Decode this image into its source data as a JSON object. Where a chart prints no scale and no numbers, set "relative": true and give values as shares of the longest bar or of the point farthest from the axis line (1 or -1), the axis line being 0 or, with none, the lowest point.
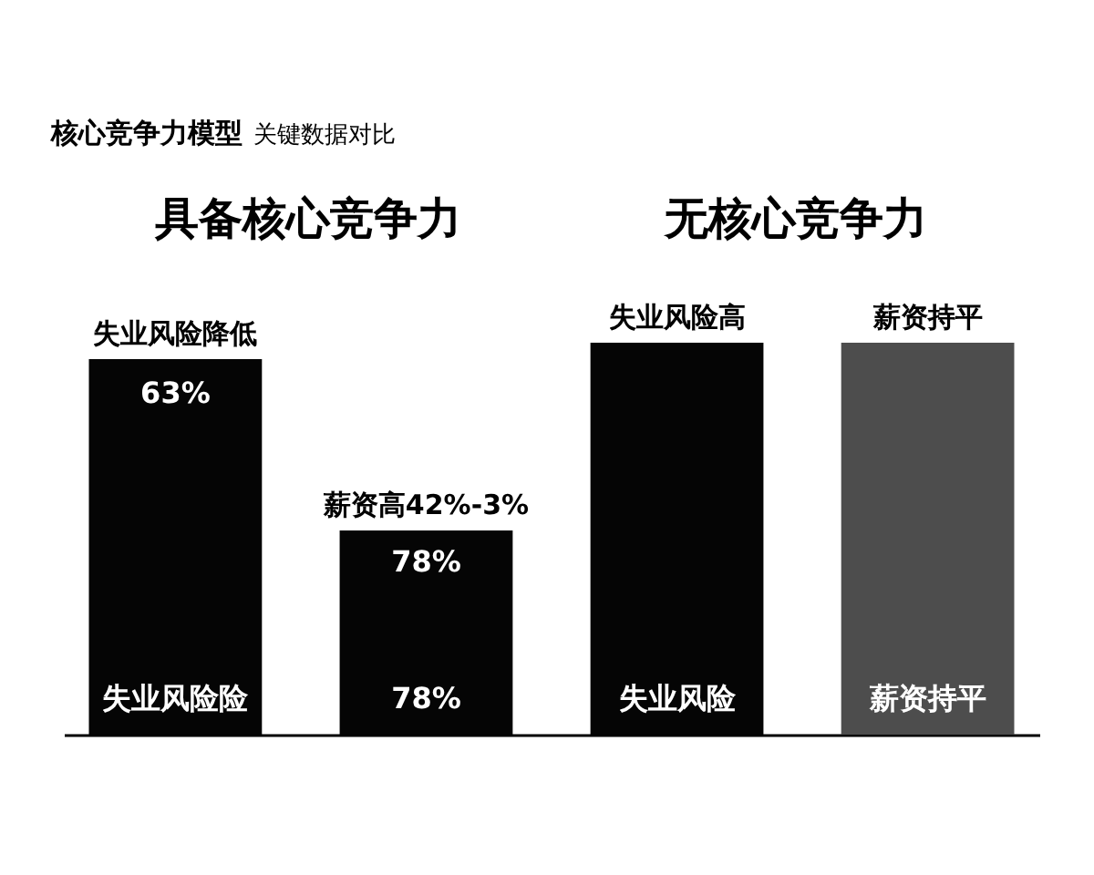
{
  "chart_data": {
    "type": "bar",
    "title": "核心竞争力模型",
    "subtitle": "关键数据对比",
    "categories": [
      "失业风险降低",
      "薪资高42%-3%",
      "失业风险高",
      "薪资持平"
    ],
    "values": [
      0.958,
      0.521,
      1,
      1
    ],
    "colors": [
      "#050505",
      "#050505",
      "#050505",
      "#4d4d4d"
    ],
    "relative": true,
    "annotations": [
      "具备核心竞争力",
      "无核心竞争力",
      "63%",
      "失业风险险",
      "78%",
      "78%",
      "失业风险",
      "薪资持平"
    ]
  }
}
